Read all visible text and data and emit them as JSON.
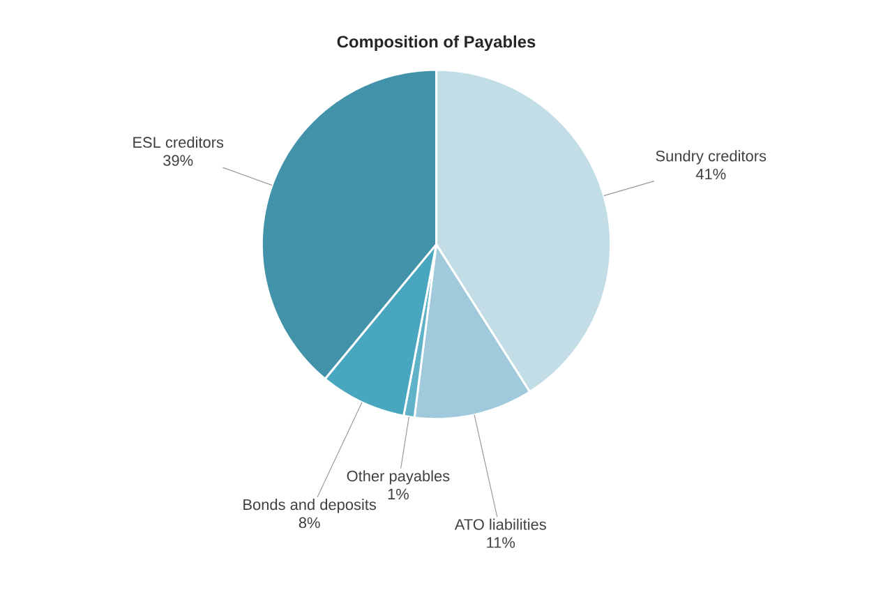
{
  "chart_data": {
    "type": "pie",
    "title": "Composition of Payables",
    "categories": [
      "Sundry creditors",
      "ATO liabilities",
      "Other payables",
      "Bonds and deposits",
      "ESL creditors"
    ],
    "values": [
      41,
      11,
      1,
      8,
      39
    ],
    "value_labels": [
      "41%",
      "11%",
      "1%",
      "8%",
      "39%"
    ],
    "colors": [
      "#c2dde6",
      "#a0cadb",
      "#5fb2c8",
      "#48a6bf",
      "#4293aa"
    ]
  }
}
